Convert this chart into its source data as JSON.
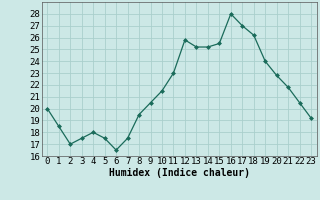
{
  "x": [
    0,
    1,
    2,
    3,
    4,
    5,
    6,
    7,
    8,
    9,
    10,
    11,
    12,
    13,
    14,
    15,
    16,
    17,
    18,
    19,
    20,
    21,
    22,
    23
  ],
  "y": [
    20,
    18.5,
    17,
    17.5,
    18,
    17.5,
    16.5,
    17.5,
    19.5,
    20.5,
    21.5,
    23,
    25.8,
    25.2,
    25.2,
    25.5,
    28,
    27,
    26.2,
    24,
    22.8,
    21.8,
    20.5,
    19.2
  ],
  "xlabel": "Humidex (Indice chaleur)",
  "ylim": [
    16,
    29
  ],
  "xlim": [
    -0.5,
    23.5
  ],
  "yticks": [
    16,
    17,
    18,
    19,
    20,
    21,
    22,
    23,
    24,
    25,
    26,
    27,
    28
  ],
  "xticks": [
    0,
    1,
    2,
    3,
    4,
    5,
    6,
    7,
    8,
    9,
    10,
    11,
    12,
    13,
    14,
    15,
    16,
    17,
    18,
    19,
    20,
    21,
    22,
    23
  ],
  "xtick_labels": [
    "0",
    "1",
    "2",
    "3",
    "4",
    "5",
    "6",
    "7",
    "8",
    "9",
    "10",
    "11",
    "12",
    "13",
    "14",
    "15",
    "16",
    "17",
    "18",
    "19",
    "20",
    "21",
    "22",
    "23"
  ],
  "line_color": "#1a6b5a",
  "marker_color": "#1a6b5a",
  "bg_color": "#cce8e6",
  "grid_color": "#aacfcc",
  "xlabel_fontsize": 7,
  "tick_fontsize": 6.5
}
